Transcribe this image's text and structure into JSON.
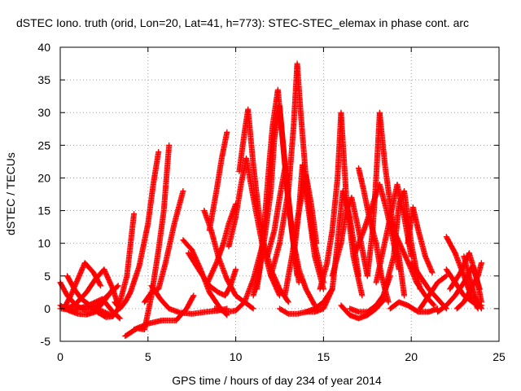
{
  "chart_data": {
    "type": "scatter",
    "title": "dSTEC Iono. truth (orid, Lon=20, Lat=41, h=773): STEC-STEC_elemax in phase cont. arc",
    "xlabel": "GPS time / hours of day 234 of year 2014",
    "ylabel": "dSTEC  / TECUs",
    "xlim": [
      0,
      25
    ],
    "ylim": [
      -5,
      40
    ],
    "xticks": [
      "0",
      "5",
      "10",
      "15",
      "20",
      "25"
    ],
    "yticks": [
      "-5",
      "0",
      "5",
      "10",
      "15",
      "20",
      "25",
      "30",
      "35",
      "40"
    ],
    "grid": true,
    "marker": "+",
    "color": "#ff0000",
    "series": [
      {
        "x": [
          0.0,
          0.5,
          1.0,
          1.5,
          2.0,
          2.6,
          3.0
        ],
        "y": [
          0.5,
          -0.3,
          -0.8,
          -0.9,
          -0.5,
          1.5,
          3.0
        ]
      },
      {
        "x": [
          0.0,
          0.4,
          0.9,
          1.4,
          2.0,
          2.5,
          3.3
        ],
        "y": [
          4.0,
          2.0,
          0.5,
          -0.2,
          0.2,
          1.5,
          3.5
        ]
      },
      {
        "x": [
          0.2,
          0.6,
          1.0,
          1.4,
          1.9,
          2.3
        ],
        "y": [
          0.0,
          2.0,
          4.5,
          7.0,
          5.5,
          3.5
        ]
      },
      {
        "x": [
          0.4,
          0.8,
          1.2,
          1.7,
          2.1,
          2.5,
          2.9
        ],
        "y": [
          5.0,
          3.0,
          1.5,
          0.5,
          0.0,
          -0.5,
          -1.0
        ]
      },
      {
        "x": [
          0.3,
          0.8,
          1.5,
          2.0,
          2.5,
          3.0,
          3.3
        ],
        "y": [
          0.0,
          0.5,
          2.5,
          4.5,
          6.0,
          3.0,
          0.5
        ]
      },
      {
        "x": [
          0.0,
          0.8,
          1.6,
          2.4,
          3.0,
          3.4
        ],
        "y": [
          0.0,
          -0.2,
          0.5,
          1.5,
          -0.5,
          -1.5
        ]
      },
      {
        "x": [
          1.6,
          2.1,
          2.6,
          3.0,
          3.3,
          3.8,
          4.2
        ],
        "y": [
          0.5,
          -0.5,
          -1.3,
          -1.2,
          0.0,
          5.0,
          14.5
        ]
      },
      {
        "x": [
          3.1,
          3.4,
          3.7,
          4.0,
          4.5,
          5.0,
          5.3,
          5.6
        ],
        "y": [
          1.0,
          0.0,
          1.0,
          2.5,
          6.5,
          13.0,
          19.0,
          24.0
        ]
      },
      {
        "x": [
          3.7,
          4.1,
          4.4,
          4.8,
          5.2,
          5.6,
          5.9,
          6.2
        ],
        "y": [
          -4.2,
          -3.5,
          -3.0,
          -3.2,
          2.0,
          9.0,
          15.0,
          25.0
        ]
      },
      {
        "x": [
          4.2,
          5.0,
          5.8,
          6.6,
          7.2,
          7.6
        ],
        "y": [
          -3.2,
          -2.3,
          -1.8,
          -1.8,
          0.0,
          2.0
        ]
      },
      {
        "x": [
          4.8,
          5.2,
          5.6,
          6.0,
          6.5,
          7.0
        ],
        "y": [
          1.0,
          2.5,
          3.0,
          7.0,
          13.0,
          18.0
        ]
      },
      {
        "x": [
          5.2,
          5.7,
          6.2,
          6.8,
          7.5,
          8.3,
          9.0,
          9.5
        ],
        "y": [
          3.5,
          1.5,
          0.0,
          -0.6,
          -0.8,
          -0.5,
          -0.3,
          0.0
        ]
      },
      {
        "x": [
          7.0,
          7.5,
          8.0,
          8.5,
          9.0,
          9.5
        ],
        "y": [
          10.5,
          9.0,
          6.0,
          2.5,
          0.5,
          -1.0
        ]
      },
      {
        "x": [
          7.3,
          8.0,
          8.5,
          9.0,
          9.4,
          9.7,
          10.0
        ],
        "y": [
          8.5,
          5.5,
          3.5,
          2.5,
          2.0,
          3.5,
          6.0
        ]
      },
      {
        "x": [
          8.2,
          8.6,
          9.0,
          9.5,
          10.0,
          10.5,
          11.0
        ],
        "y": [
          15.0,
          12.0,
          8.0,
          4.5,
          2.0,
          1.0,
          0.0
        ]
      },
      {
        "x": [
          8.5,
          8.9,
          9.2,
          9.5
        ],
        "y": [
          12.0,
          18.0,
          23.0,
          27.0
        ]
      },
      {
        "x": [
          8.4,
          8.9,
          9.3,
          9.6,
          10.0
        ],
        "y": [
          4.0,
          7.0,
          10.0,
          13.0,
          16.0
        ]
      },
      {
        "x": [
          8.8,
          9.5,
          10.0,
          10.5,
          11.0,
          11.5
        ],
        "y": [
          0.0,
          -0.5,
          -0.3,
          1.0,
          4.5,
          9.5
        ]
      },
      {
        "x": [
          9.6,
          10.0,
          10.3,
          10.6,
          11.0,
          11.5,
          12.0,
          12.5
        ],
        "y": [
          9.5,
          14.0,
          19.0,
          23.0,
          17.0,
          10.0,
          5.0,
          2.0
        ]
      },
      {
        "x": [
          10.2,
          10.5,
          10.7,
          11.0,
          11.3,
          11.6,
          12.0,
          12.5,
          13.0
        ],
        "y": [
          21.0,
          27.0,
          30.5,
          22.0,
          15.0,
          10.0,
          6.0,
          3.0,
          1.0
        ]
      },
      {
        "x": [
          11.0,
          11.3,
          11.6,
          11.9,
          12.1,
          12.4,
          12.7,
          13.1,
          13.5
        ],
        "y": [
          2.0,
          5.0,
          12.0,
          22.0,
          28.0,
          33.5,
          25.0,
          14.0,
          5.0
        ]
      },
      {
        "x": [
          11.2,
          11.6,
          12.0,
          12.2,
          12.5,
          12.8,
          13.2,
          13.6
        ],
        "y": [
          3.0,
          10.0,
          18.0,
          26.0,
          31.0,
          22.0,
          12.0,
          4.0
        ]
      },
      {
        "x": [
          11.8,
          12.2,
          12.5,
          12.8,
          13.0,
          13.3,
          13.6,
          14.0,
          14.5
        ],
        "y": [
          8.0,
          12.0,
          17.0,
          21.5,
          16.0,
          10.0,
          6.0,
          3.0,
          0.5
        ]
      },
      {
        "x": [
          12.0,
          12.5,
          13.0,
          13.3,
          13.5,
          13.7,
          14.0,
          14.4,
          15.0
        ],
        "y": [
          5.0,
          10.0,
          18.0,
          28.0,
          37.5,
          30.0,
          20.0,
          11.0,
          4.0
        ]
      },
      {
        "x": [
          12.8,
          13.2,
          13.6,
          14.0,
          14.3,
          14.6
        ],
        "y": [
          2.0,
          8.0,
          15.0,
          20.5,
          16.0,
          10.0
        ]
      },
      {
        "x": [
          13.3,
          13.6,
          13.8,
          14.1,
          14.5,
          15.0
        ],
        "y": [
          8.0,
          15.0,
          22.0,
          16.0,
          8.0,
          3.0
        ]
      },
      {
        "x": [
          12.5,
          13.0,
          13.5,
          14.0,
          14.5,
          15.0,
          15.5
        ],
        "y": [
          0.0,
          -0.8,
          -0.8,
          -0.5,
          0.0,
          1.0,
          3.0
        ]
      },
      {
        "x": [
          14.0,
          14.5,
          15.0,
          15.5,
          15.8,
          16.1,
          16.5,
          17.0
        ],
        "y": [
          -0.5,
          -0.5,
          0.0,
          3.0,
          10.0,
          18.0,
          14.0,
          5.0
        ]
      },
      {
        "x": [
          14.8,
          15.2,
          15.5,
          15.8,
          16.0,
          16.3,
          16.7,
          17.2
        ],
        "y": [
          3.0,
          7.0,
          12.0,
          20.0,
          30.0,
          17.0,
          8.0,
          2.0
        ]
      },
      {
        "x": [
          15.5,
          16.0,
          16.3,
          16.6,
          17.0,
          17.5
        ],
        "y": [
          5.0,
          10.0,
          15.0,
          17.0,
          12.0,
          5.0
        ]
      },
      {
        "x": [
          16.0,
          16.5,
          17.0,
          17.5,
          18.0,
          18.5
        ],
        "y": [
          0.5,
          -1.0,
          -1.5,
          -1.0,
          0.0,
          1.5
        ]
      },
      {
        "x": [
          16.5,
          17.0,
          17.5,
          18.0,
          18.4,
          18.8
        ],
        "y": [
          0.0,
          -0.5,
          -0.5,
          0.5,
          2.0,
          5.0
        ]
      },
      {
        "x": [
          16.8,
          17.3,
          17.8,
          18.2,
          18.6,
          19.0,
          19.3
        ],
        "y": [
          8.5,
          12.0,
          16.0,
          19.0,
          15.0,
          10.0,
          6.0
        ]
      },
      {
        "x": [
          17.0,
          17.3,
          17.6,
          18.0,
          18.3,
          18.7
        ],
        "y": [
          21.5,
          18.0,
          14.0,
          10.0,
          5.0,
          1.0
        ]
      },
      {
        "x": [
          17.5,
          17.8,
          18.0,
          18.2,
          18.5,
          18.9,
          19.3,
          19.6
        ],
        "y": [
          5.0,
          12.0,
          20.0,
          30.0,
          22.0,
          14.0,
          8.0,
          2.0
        ]
      },
      {
        "x": [
          18.0,
          18.4,
          18.8,
          19.2,
          19.6,
          20.0
        ],
        "y": [
          4.0,
          9.0,
          14.0,
          19.0,
          14.0,
          8.0
        ]
      },
      {
        "x": [
          18.5,
          19.0,
          19.3,
          19.6,
          20.0,
          20.5
        ],
        "y": [
          3.0,
          8.0,
          16.0,
          18.0,
          10.0,
          3.0
        ]
      },
      {
        "x": [
          19.0,
          19.5,
          20.0,
          20.3,
          20.8,
          21.3
        ],
        "y": [
          12.0,
          9.0,
          6.0,
          4.0,
          2.0,
          0.5
        ]
      },
      {
        "x": [
          18.8,
          19.3,
          19.8,
          20.4,
          21.0,
          21.5
        ],
        "y": [
          0.0,
          1.0,
          0.5,
          -0.5,
          -0.5,
          0.0
        ]
      },
      {
        "x": [
          19.8,
          20.1,
          20.4,
          20.8,
          21.2
        ],
        "y": [
          10.0,
          15.5,
          12.0,
          8.0,
          5.5
        ]
      },
      {
        "x": [
          20.0,
          20.5,
          21.0,
          21.5,
          22.0
        ],
        "y": [
          7.0,
          5.0,
          3.0,
          1.5,
          0.0
        ]
      },
      {
        "x": [
          20.5,
          21.0,
          21.5,
          22.0
        ],
        "y": [
          0.0,
          2.0,
          4.0,
          5.0
        ]
      },
      {
        "x": [
          21.5,
          22.0,
          22.5,
          23.0,
          23.5,
          23.9
        ],
        "y": [
          -0.5,
          0.5,
          2.0,
          4.0,
          6.5,
          3.0
        ]
      },
      {
        "x": [
          22.0,
          22.5,
          23.0,
          23.4,
          23.8
        ],
        "y": [
          11.0,
          8.5,
          5.0,
          2.0,
          0.0
        ]
      },
      {
        "x": [
          22.2,
          22.8,
          23.3,
          23.7,
          24.0
        ],
        "y": [
          3.0,
          5.5,
          8.5,
          5.0,
          1.0
        ]
      },
      {
        "x": [
          22.6,
          23.0,
          23.4,
          23.8,
          24.0
        ],
        "y": [
          0.0,
          1.0,
          3.0,
          5.0,
          7.0
        ]
      },
      {
        "x": [
          22.0,
          22.5,
          23.0,
          23.5,
          24.0
        ],
        "y": [
          6.0,
          4.0,
          2.0,
          1.0,
          0.5
        ]
      },
      {
        "x": [
          23.0,
          23.3,
          23.6,
          24.0
        ],
        "y": [
          8.0,
          5.0,
          2.0,
          0.0
        ]
      }
    ]
  }
}
